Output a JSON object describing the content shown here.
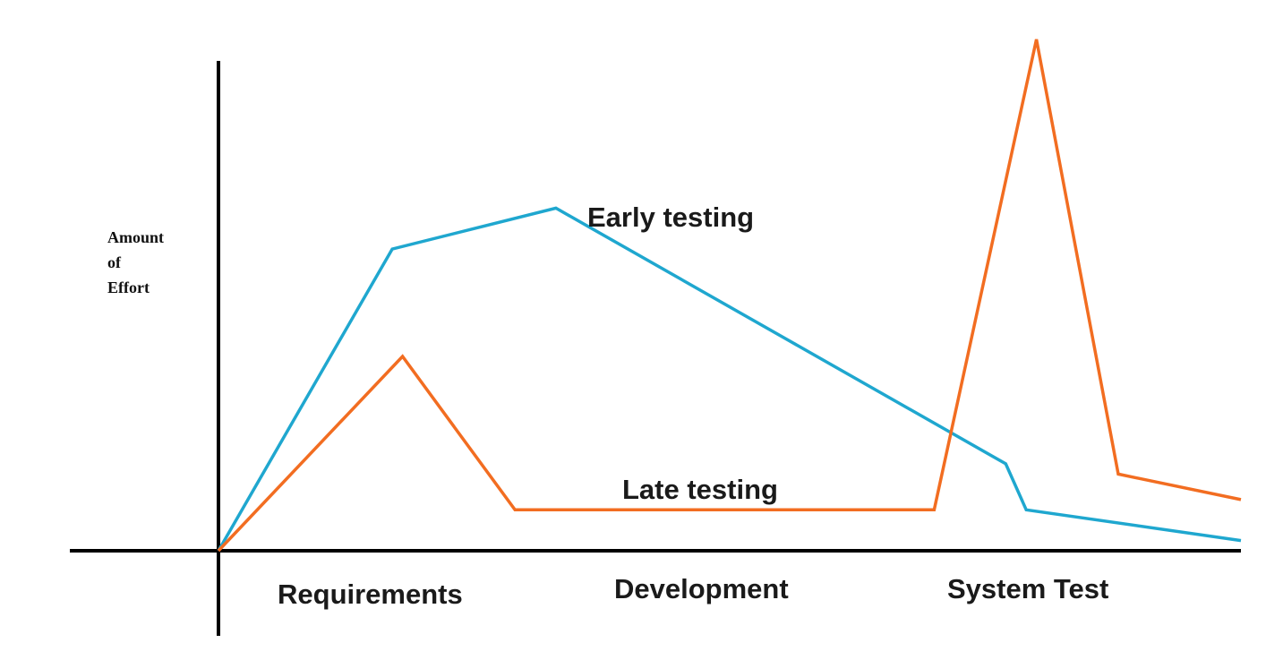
{
  "chart_data": {
    "type": "line",
    "title": "",
    "xlabel": "",
    "ylabel_lines": [
      "Amount",
      "of",
      "Effort"
    ],
    "categories": [
      "Requirements",
      "Development",
      "System Test"
    ],
    "xlim": [
      0,
      100
    ],
    "ylim": [
      0,
      100
    ],
    "grid": false,
    "series": [
      {
        "name": "Early testing",
        "color": "#1fa7cf",
        "x": [
          0,
          17,
          33,
          77,
          79,
          100
        ],
        "y": [
          0,
          59,
          67,
          17,
          8,
          2
        ]
      },
      {
        "name": "Late testing",
        "color": "#f26d21",
        "x": [
          0,
          18,
          29,
          70,
          80,
          88,
          100
        ],
        "y": [
          0,
          38,
          8,
          8,
          100,
          15,
          10
        ]
      }
    ]
  }
}
